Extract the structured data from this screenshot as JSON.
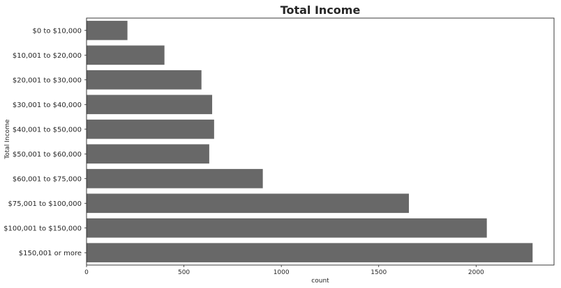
{
  "chart_data": {
    "type": "bar",
    "orientation": "horizontal",
    "title": "Total Income",
    "xlabel": "count",
    "ylabel": "Total Income",
    "categories": [
      "$0 to $10,000",
      "$10,001 to $20,000",
      "$20,001 to $30,000",
      "$30,001 to $40,000",
      "$40,001 to $50,000",
      "$50,001 to $60,000",
      "$60,001 to $75,000",
      "$75,001 to $100,000",
      "$100,001 to $150,000",
      "$150,001 or more"
    ],
    "values": [
      210,
      400,
      590,
      645,
      655,
      630,
      905,
      1655,
      2055,
      2290
    ],
    "xlim": [
      0,
      2400
    ],
    "xticks": [
      0,
      500,
      1000,
      1500,
      2000
    ],
    "bar_color": "#686868",
    "grid": false
  }
}
